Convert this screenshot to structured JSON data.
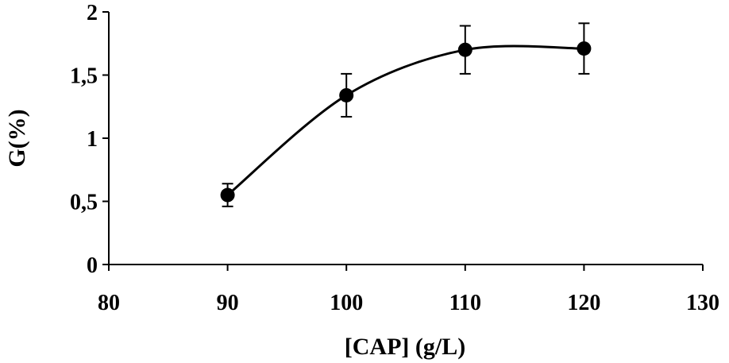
{
  "chart_data": {
    "type": "scatter",
    "xlabel": "[CAP] (g/L)",
    "ylabel": "G(%)",
    "xlim": [
      80,
      130
    ],
    "ylim": [
      0,
      2
    ],
    "x_ticks": [
      "80",
      "90",
      "100",
      "110",
      "120",
      "130"
    ],
    "y_ticks": [
      "0",
      "0,5",
      "1",
      "1,5",
      "2"
    ],
    "x_tick_values": [
      80,
      90,
      100,
      110,
      120,
      130
    ],
    "y_tick_values": [
      0,
      0.5,
      1,
      1.5,
      2
    ],
    "grid": false,
    "smoothed_line": true,
    "series": [
      {
        "x": [
          90,
          100,
          110,
          120
        ],
        "y": [
          0.55,
          1.34,
          1.7,
          1.71
        ],
        "error": [
          0.09,
          0.17,
          0.19,
          0.2
        ]
      }
    ]
  }
}
